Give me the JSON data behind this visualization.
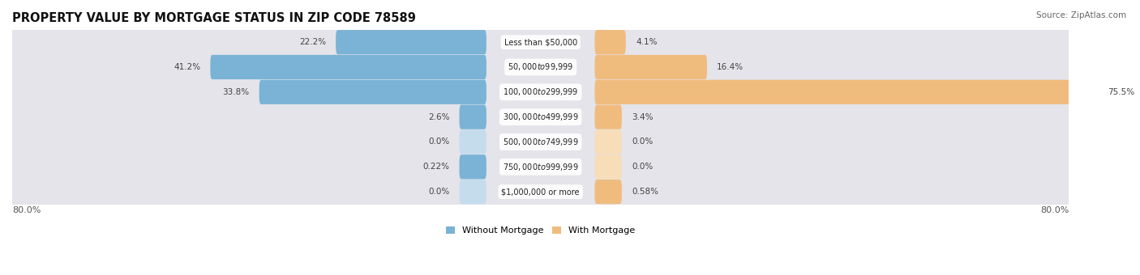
{
  "title": "PROPERTY VALUE BY MORTGAGE STATUS IN ZIP CODE 78589",
  "source": "Source: ZipAtlas.com",
  "categories": [
    "Less than $50,000",
    "$50,000 to $99,999",
    "$100,000 to $299,999",
    "$300,000 to $499,999",
    "$500,000 to $749,999",
    "$750,000 to $999,999",
    "$1,000,000 or more"
  ],
  "without_mortgage": [
    22.2,
    41.2,
    33.8,
    2.6,
    0.0,
    0.22,
    0.0
  ],
  "with_mortgage": [
    4.1,
    16.4,
    75.5,
    3.4,
    0.0,
    0.0,
    0.58
  ],
  "without_mortgage_labels": [
    "22.2%",
    "41.2%",
    "33.8%",
    "2.6%",
    "0.0%",
    "0.22%",
    "0.0%"
  ],
  "with_mortgage_labels": [
    "4.1%",
    "16.4%",
    "75.5%",
    "3.4%",
    "0.0%",
    "0.0%",
    "0.58%"
  ],
  "color_without": "#7ab3d5",
  "color_with": "#f0bc7e",
  "color_without_light": "#c5dced",
  "color_with_light": "#f7ddb8",
  "axis_limit": 80.0,
  "axis_label_left": "80.0%",
  "axis_label_right": "80.0%",
  "row_bg_color": "#e4e4ea",
  "row_bg_light": "#f0f0f4",
  "title_fontsize": 10.5,
  "source_fontsize": 7.5,
  "label_fontsize": 7.5,
  "cat_fontsize": 7.0,
  "legend_fontsize": 8,
  "axis_fontsize": 8,
  "min_bar": 3.5
}
